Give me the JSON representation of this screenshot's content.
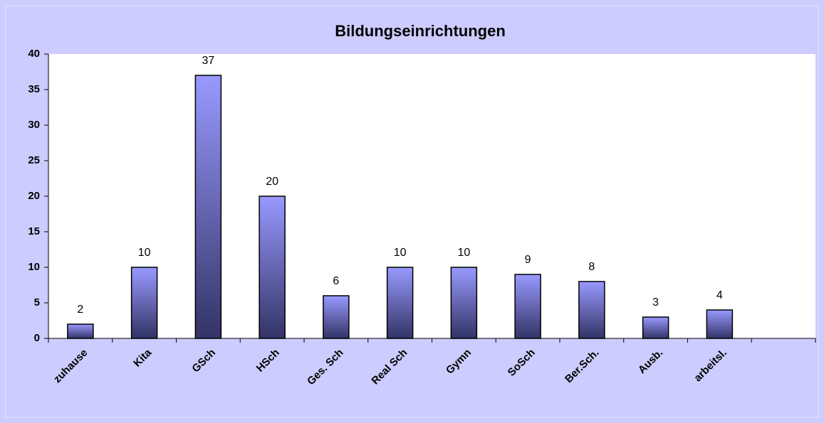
{
  "chart_data": {
    "type": "bar",
    "title": "Bildungseinrichtungen",
    "categories": [
      "zuhause",
      "Kita",
      "GSch",
      "HSch",
      "Ges. Sch",
      "Real Sch",
      "Gymn",
      "SoSch",
      "Ber.Sch.",
      "Ausb.",
      "arbeitsl.",
      null
    ],
    "values": [
      2,
      10,
      37,
      20,
      6,
      10,
      10,
      9,
      8,
      3,
      4,
      null
    ],
    "color": "#9999ff",
    "ylim": [
      0,
      40
    ],
    "yticks": [
      0,
      5,
      10,
      15,
      20,
      25,
      30,
      35,
      40
    ],
    "grid": false
  }
}
